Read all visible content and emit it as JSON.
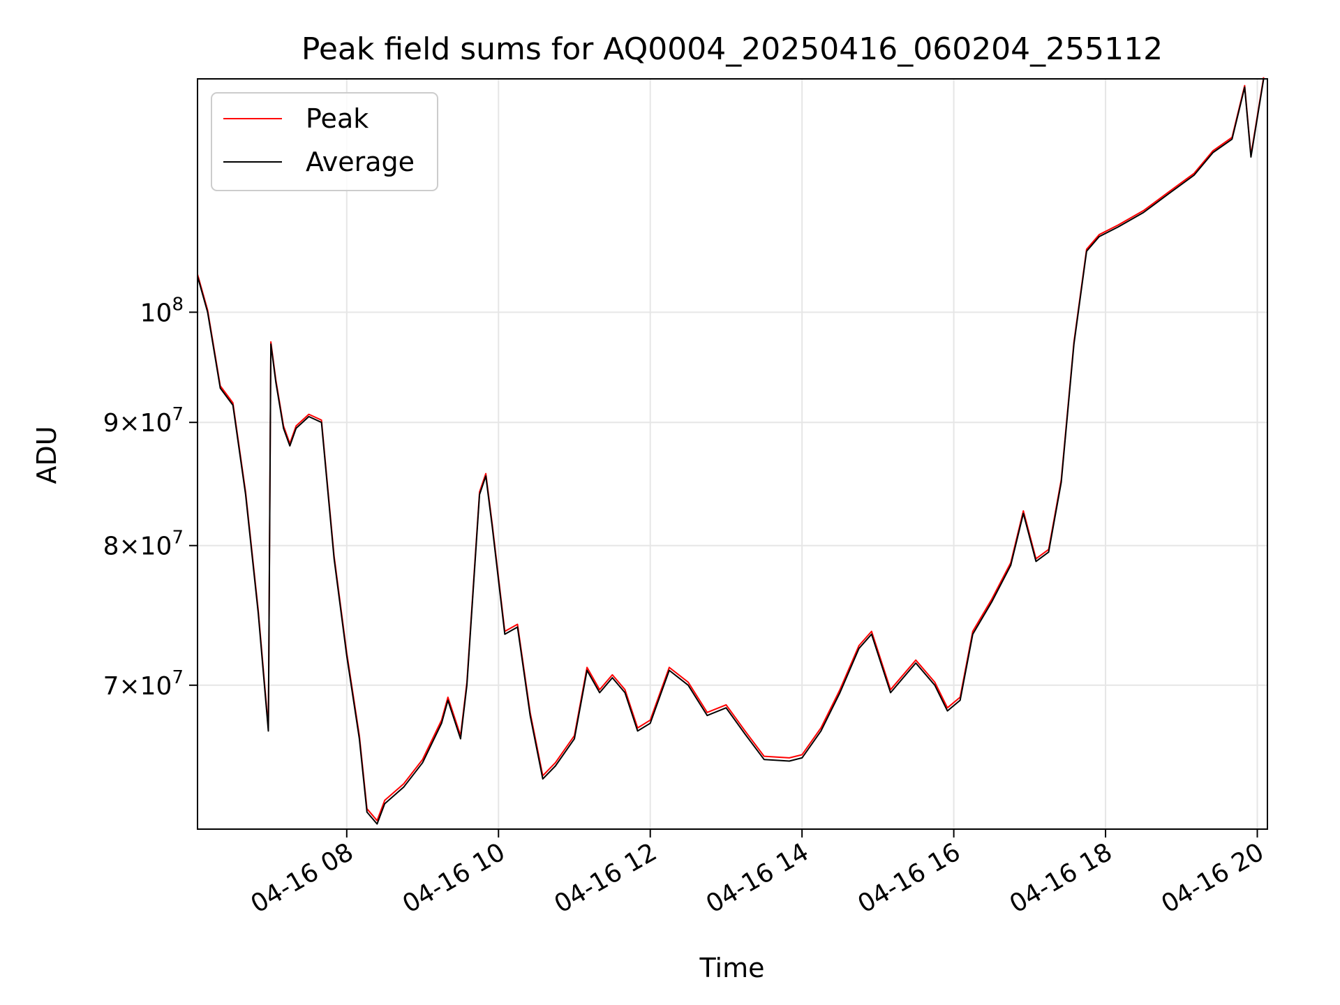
{
  "chart_data": {
    "type": "line",
    "title": "Peak field sums for AQ0004_20250416_060204_255112",
    "xlabel": "Time",
    "ylabel": "ADU",
    "y_scale": "log",
    "grid": true,
    "legend_position": "top-left",
    "xlim": [
      "2025-04-16 06:02",
      "2025-04-16 20:08"
    ],
    "ylim": [
      61000000,
      125000000
    ],
    "x_ticks": [
      {
        "t": "2025-04-16 08:00",
        "label": "04-16 08"
      },
      {
        "t": "2025-04-16 10:00",
        "label": "04-16 10"
      },
      {
        "t": "2025-04-16 12:00",
        "label": "04-16 12"
      },
      {
        "t": "2025-04-16 14:00",
        "label": "04-16 14"
      },
      {
        "t": "2025-04-16 16:00",
        "label": "04-16 16"
      },
      {
        "t": "2025-04-16 18:00",
        "label": "04-16 18"
      },
      {
        "t": "2025-04-16 20:00",
        "label": "04-16 20"
      }
    ],
    "y_ticks": [
      {
        "v": 70000000,
        "mant": "7",
        "exp": "7"
      },
      {
        "v": 80000000,
        "mant": "8",
        "exp": "7"
      },
      {
        "v": 90000000,
        "mant": "9",
        "exp": "7"
      },
      {
        "v": 100000000,
        "mant": "",
        "exp": "8"
      }
    ],
    "series": [
      {
        "name": "Peak",
        "color": "#ff0000"
      },
      {
        "name": "Average",
        "color": "#000000"
      }
    ],
    "x": [
      "2025-04-16 06:02",
      "2025-04-16 06:10",
      "2025-04-16 06:20",
      "2025-04-16 06:30",
      "2025-04-16 06:40",
      "2025-04-16 06:50",
      "2025-04-16 06:58",
      "2025-04-16 07:00",
      "2025-04-16 07:04",
      "2025-04-16 07:10",
      "2025-04-16 07:15",
      "2025-04-16 07:20",
      "2025-04-16 07:30",
      "2025-04-16 07:40",
      "2025-04-16 07:50",
      "2025-04-16 08:00",
      "2025-04-16 08:10",
      "2025-04-16 08:16",
      "2025-04-16 08:24",
      "2025-04-16 08:30",
      "2025-04-16 08:45",
      "2025-04-16 09:00",
      "2025-04-16 09:15",
      "2025-04-16 09:20",
      "2025-04-16 09:30",
      "2025-04-16 09:35",
      "2025-04-16 09:45",
      "2025-04-16 09:50",
      "2025-04-16 09:55",
      "2025-04-16 10:05",
      "2025-04-16 10:15",
      "2025-04-16 10:25",
      "2025-04-16 10:35",
      "2025-04-16 10:45",
      "2025-04-16 11:00",
      "2025-04-16 11:10",
      "2025-04-16 11:20",
      "2025-04-16 11:30",
      "2025-04-16 11:40",
      "2025-04-16 11:50",
      "2025-04-16 12:00",
      "2025-04-16 12:15",
      "2025-04-16 12:30",
      "2025-04-16 12:45",
      "2025-04-16 13:00",
      "2025-04-16 13:15",
      "2025-04-16 13:30",
      "2025-04-16 13:50",
      "2025-04-16 14:00",
      "2025-04-16 14:15",
      "2025-04-16 14:30",
      "2025-04-16 14:45",
      "2025-04-16 14:55",
      "2025-04-16 15:10",
      "2025-04-16 15:25",
      "2025-04-16 15:30",
      "2025-04-16 15:45",
      "2025-04-16 15:55",
      "2025-04-16 16:05",
      "2025-04-16 16:15",
      "2025-04-16 16:30",
      "2025-04-16 16:45",
      "2025-04-16 16:55",
      "2025-04-16 17:05",
      "2025-04-16 17:15",
      "2025-04-16 17:25",
      "2025-04-16 17:35",
      "2025-04-16 17:45",
      "2025-04-16 17:55",
      "2025-04-16 18:10",
      "2025-04-16 18:30",
      "2025-04-16 18:50",
      "2025-04-16 19:10",
      "2025-04-16 19:25",
      "2025-04-16 19:40",
      "2025-04-16 19:50",
      "2025-04-16 19:55",
      "2025-04-16 20:05"
    ],
    "average": [
      103500000,
      100000000,
      93000000,
      91500000,
      84000000,
      75000000,
      67000000,
      97000000,
      93500000,
      89500000,
      88000000,
      89500000,
      90500000,
      90000000,
      79000000,
      72000000,
      66500000,
      62000000,
      61300000,
      62500000,
      63500000,
      65000000,
      67500000,
      69000000,
      66500000,
      70000000,
      84000000,
      85500000,
      81500000,
      73500000,
      74000000,
      68000000,
      64000000,
      64800000,
      66500000,
      71000000,
      69500000,
      70500000,
      69500000,
      67000000,
      67500000,
      71000000,
      70000000,
      68000000,
      68500000,
      66800000,
      65200000,
      65100000,
      65300000,
      67000000,
      69500000,
      72500000,
      73500000,
      69500000,
      71000000,
      71500000,
      70000000,
      68300000,
      69000000,
      73500000,
      75800000,
      78500000,
      82500000,
      78800000,
      79500000,
      85000000,
      97000000,
      106000000,
      107500000,
      108500000,
      110000000,
      112000000,
      114000000,
      116500000,
      118000000,
      124000000,
      116000000,
      125000000
    ],
    "peak": [
      103700000,
      100200000,
      93200000,
      91700000,
      84200000,
      75200000,
      67200000,
      97200000,
      93700000,
      89700000,
      88200000,
      89700000,
      90700000,
      90200000,
      79200000,
      72200000,
      66700000,
      62200000,
      61500000,
      62700000,
      63700000,
      65200000,
      67700000,
      69200000,
      66700000,
      70200000,
      84200000,
      85700000,
      81700000,
      73700000,
      74200000,
      68200000,
      64200000,
      65000000,
      66700000,
      71200000,
      69700000,
      70700000,
      69700000,
      67200000,
      67700000,
      71200000,
      70200000,
      68200000,
      68700000,
      67000000,
      65400000,
      65300000,
      65500000,
      67200000,
      69700000,
      72700000,
      73700000,
      69700000,
      71200000,
      71700000,
      70200000,
      68500000,
      69200000,
      73700000,
      76000000,
      78700000,
      82700000,
      79000000,
      79700000,
      85200000,
      97200000,
      106200000,
      107700000,
      108700000,
      110200000,
      112200000,
      114200000,
      116700000,
      118200000,
      124200000,
      116200000,
      125200000
    ]
  }
}
